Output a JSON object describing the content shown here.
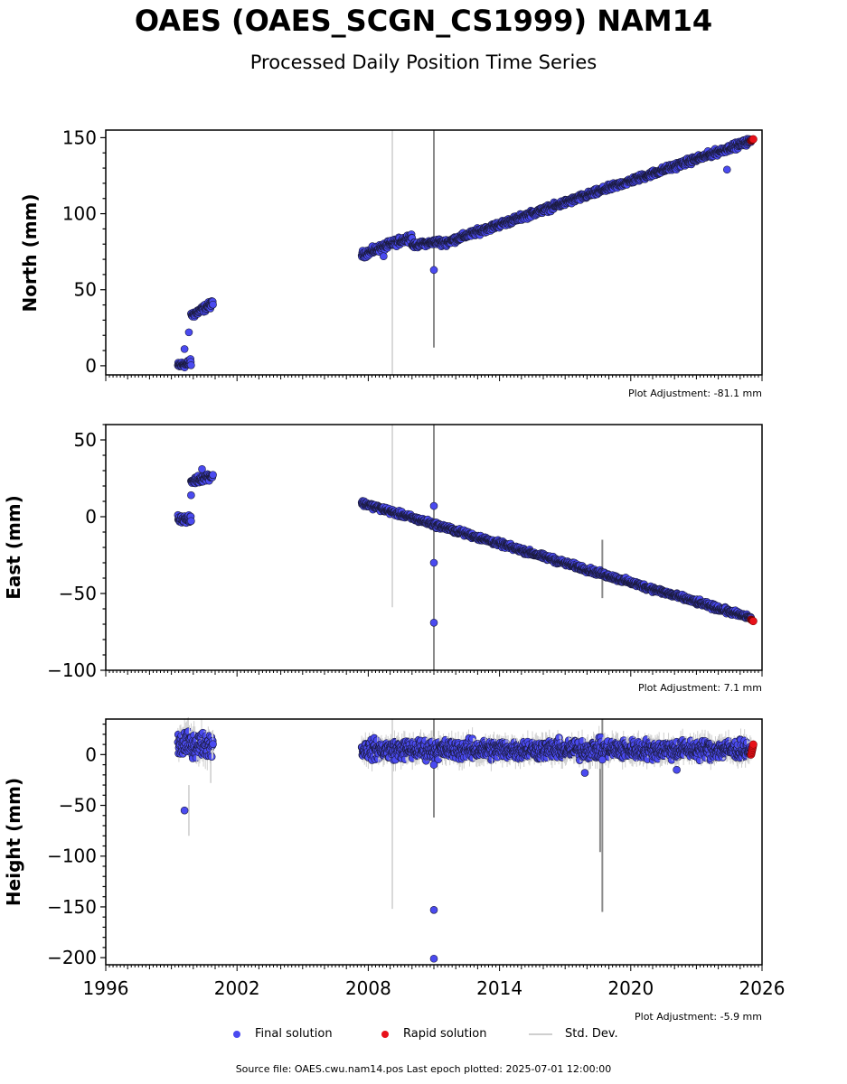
{
  "title": "OAES (OAES_SCGN_CS1999) NAM14",
  "subtitle": "Processed Daily Position Time Series",
  "colors": {
    "final": "#4a4af0",
    "rapid": "#e8111a",
    "std": "#cfcfcf",
    "std_dark": "#555555"
  },
  "legend": {
    "final": "Final solution",
    "rapid": "Rapid solution",
    "std": "Std. Dev."
  },
  "footer": "Source file: OAES.cwu.nam14.pos  Last epoch plotted: 2025-07-01 12:00:00",
  "chart_data": [
    {
      "type": "scatter",
      "ylabel": "North (mm)",
      "adjustment": "Plot Adjustment: -81.1 mm",
      "xlim": [
        1996,
        2026
      ],
      "ylim": [
        -6,
        155
      ],
      "yticks": [
        0,
        50,
        100,
        150
      ],
      "xticks": [],
      "segments": [
        {
          "x0": 1999.3,
          "x1": 1999.9,
          "y0": 0,
          "y1": 2,
          "noise": 2
        },
        {
          "x0": 1999.9,
          "x1": 2000.9,
          "y0": 33,
          "y1": 41,
          "noise": 2
        },
        {
          "x0": 2007.7,
          "x1": 2010.0,
          "y0": 73,
          "y1": 85,
          "noise": 2
        },
        {
          "x0": 2010.0,
          "x1": 2011.3,
          "y0": 79,
          "y1": 82,
          "noise": 1.5
        },
        {
          "x0": 2011.3,
          "x1": 2025.5,
          "y0": 80,
          "y1": 148,
          "noise": 1.8
        }
      ],
      "outliers": [
        [
          1999.6,
          11
        ],
        [
          1999.8,
          22
        ],
        [
          2011.0,
          63
        ],
        [
          2008.7,
          72
        ],
        [
          2024.4,
          129
        ]
      ],
      "std_lines": [
        [
          2009.1,
          155,
          -6,
          "light"
        ],
        [
          2011.0,
          155,
          12,
          "dark"
        ]
      ],
      "rapid": {
        "x0": 2025.5,
        "x1": 2025.6,
        "y0": 148,
        "y1": 149
      }
    },
    {
      "type": "scatter",
      "ylabel": "East (mm)",
      "adjustment": "Plot Adjustment: 7.1 mm",
      "xlim": [
        1996,
        2026
      ],
      "ylim": [
        -100,
        60
      ],
      "yticks": [
        -100,
        -50,
        0,
        50
      ],
      "xticks": [],
      "segments": [
        {
          "x0": 1999.3,
          "x1": 1999.9,
          "y0": -1,
          "y1": -2,
          "noise": 2
        },
        {
          "x0": 1999.9,
          "x1": 2000.9,
          "y0": 23,
          "y1": 27,
          "noise": 2
        },
        {
          "x0": 2007.7,
          "x1": 2025.5,
          "y0": 9,
          "y1": -66,
          "noise": 1.5
        }
      ],
      "outliers": [
        [
          1999.9,
          14
        ],
        [
          2000.4,
          31
        ],
        [
          2011.0,
          7
        ],
        [
          2011.0,
          -30
        ],
        [
          2011.0,
          -69
        ]
      ],
      "std_lines": [
        [
          2009.1,
          60,
          -59,
          "light"
        ],
        [
          2011.0,
          60,
          -100,
          "dark"
        ],
        [
          2018.7,
          -15,
          -53,
          "dark"
        ]
      ],
      "rapid": {
        "x0": 2025.5,
        "x1": 2025.6,
        "y0": -67,
        "y1": -68
      }
    },
    {
      "type": "scatter",
      "ylabel": "Height (mm)",
      "adjustment": "Plot Adjustment: -5.9 mm",
      "xlim": [
        1996,
        2026
      ],
      "ylim": [
        -207,
        35
      ],
      "yticks": [
        -200,
        -150,
        -100,
        -50,
        0
      ],
      "xticks": [
        1996,
        2002,
        2008,
        2014,
        2020,
        2026
      ],
      "segments": [
        {
          "x0": 1999.3,
          "x1": 2000.9,
          "y0": 10,
          "y1": 10,
          "noise": 10
        },
        {
          "x0": 2007.7,
          "x1": 2025.5,
          "y0": 5,
          "y1": 5,
          "noise": 8
        }
      ],
      "outliers": [
        [
          1999.6,
          -55
        ],
        [
          2011.0,
          -153
        ],
        [
          2011.0,
          -201
        ],
        [
          2011.0,
          -10
        ],
        [
          2018.7,
          -5
        ],
        [
          2017.9,
          -18
        ],
        [
          2022.1,
          -15
        ]
      ],
      "std_lines": [
        [
          2009.1,
          35,
          -152,
          "light"
        ],
        [
          2011.0,
          35,
          -62,
          "dark"
        ],
        [
          2018.7,
          35,
          -155,
          "dark"
        ],
        [
          2018.6,
          20,
          -96,
          "dark"
        ],
        [
          1999.8,
          -30,
          -80,
          "light"
        ],
        [
          2000.8,
          0,
          -28,
          "light"
        ]
      ],
      "rapid": {
        "x0": 2025.5,
        "x1": 2025.6,
        "y0": 0,
        "y1": 10
      }
    }
  ]
}
